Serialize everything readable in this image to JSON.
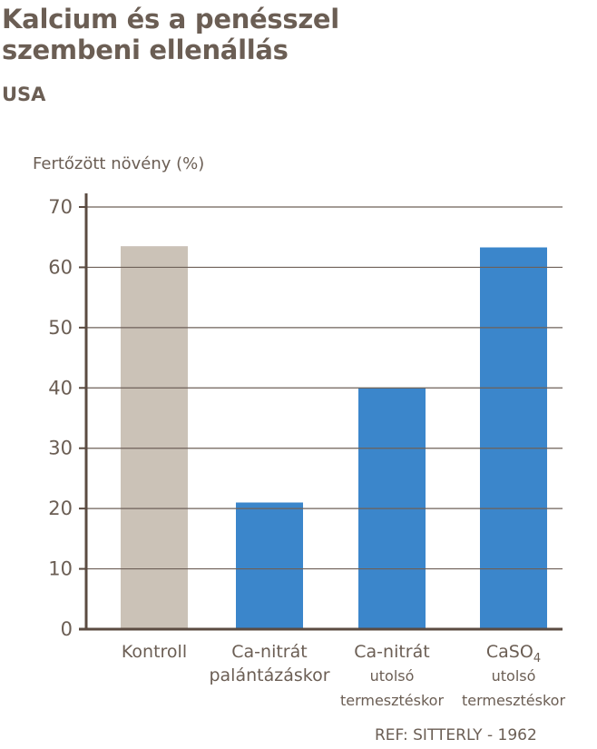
{
  "header": {
    "title_line1": "Kalcium és a penésszel",
    "title_line2": "szembeni ellenállás",
    "subtitle": "USA"
  },
  "reference": "REF: SITTERLY - 1962",
  "chart_data": {
    "type": "bar",
    "title": "Kalcium és a penésszel szembeni ellenállás",
    "subtitle": "USA",
    "xlabel": "",
    "ylabel": "Fertőzött növény (%)",
    "ylim": [
      0,
      70
    ],
    "yticks": [
      0,
      10,
      20,
      30,
      40,
      50,
      60,
      70
    ],
    "grid": true,
    "categories": [
      {
        "lines": [
          "Kontroll"
        ]
      },
      {
        "lines": [
          "Ca-nitrát",
          "palántázáskor"
        ]
      },
      {
        "lines": [
          "Ca-nitrát",
          "utolsó",
          "termesztéskor"
        ]
      },
      {
        "lines": [
          "CaSO4",
          "utolsó",
          "termesztéskor"
        ]
      }
    ],
    "values": [
      63.5,
      21,
      40,
      63.3
    ],
    "bar_colors": [
      "#cbc2b7",
      "#3b86cb",
      "#3b86cb",
      "#3b86cb"
    ],
    "axis_color": "#5b4b41",
    "grid_color": "#6e6058"
  }
}
